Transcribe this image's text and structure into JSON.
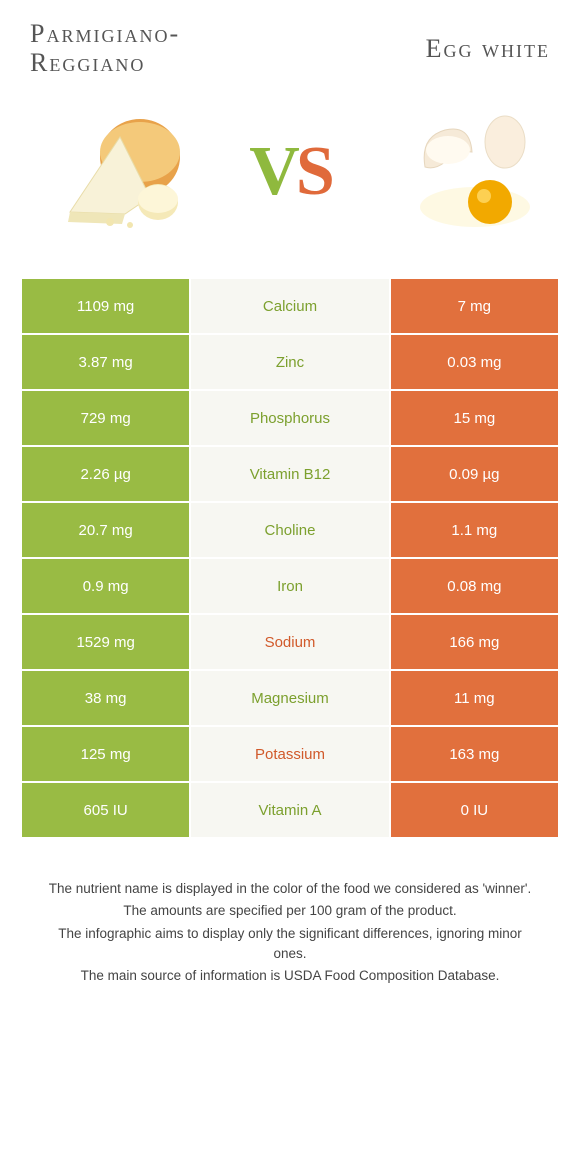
{
  "left_title": "Parmigiano-Reggiano",
  "right_title": "Egg white",
  "vs_v": "V",
  "vs_s": "S",
  "colors": {
    "left": "#99bb44",
    "right": "#e1703d",
    "left_text": "#7ca02e",
    "right_text": "#d15a2b",
    "mid_bg": "#f7f7f2"
  },
  "rows": [
    {
      "nutrient": "Calcium",
      "left": "1109 mg",
      "right": "7 mg",
      "winner": "left"
    },
    {
      "nutrient": "Zinc",
      "left": "3.87 mg",
      "right": "0.03 mg",
      "winner": "left"
    },
    {
      "nutrient": "Phosphorus",
      "left": "729 mg",
      "right": "15 mg",
      "winner": "left"
    },
    {
      "nutrient": "Vitamin B12",
      "left": "2.26 µg",
      "right": "0.09 µg",
      "winner": "left"
    },
    {
      "nutrient": "Choline",
      "left": "20.7 mg",
      "right": "1.1 mg",
      "winner": "left"
    },
    {
      "nutrient": "Iron",
      "left": "0.9 mg",
      "right": "0.08 mg",
      "winner": "left"
    },
    {
      "nutrient": "Sodium",
      "left": "1529 mg",
      "right": "166 mg",
      "winner": "right"
    },
    {
      "nutrient": "Magnesium",
      "left": "38 mg",
      "right": "11 mg",
      "winner": "left"
    },
    {
      "nutrient": "Potassium",
      "left": "125 mg",
      "right": "163 mg",
      "winner": "right"
    },
    {
      "nutrient": "Vitamin A",
      "left": "605 IU",
      "right": "0 IU",
      "winner": "left"
    }
  ],
  "footer": {
    "l1": "The nutrient name is displayed in the color of the food we considered as 'winner'.",
    "l2": "The amounts are specified per 100 gram of the product.",
    "l3": "The infographic aims to display only the significant differences, ignoring minor ones.",
    "l4": "The main source of information is USDA Food Composition Database."
  }
}
